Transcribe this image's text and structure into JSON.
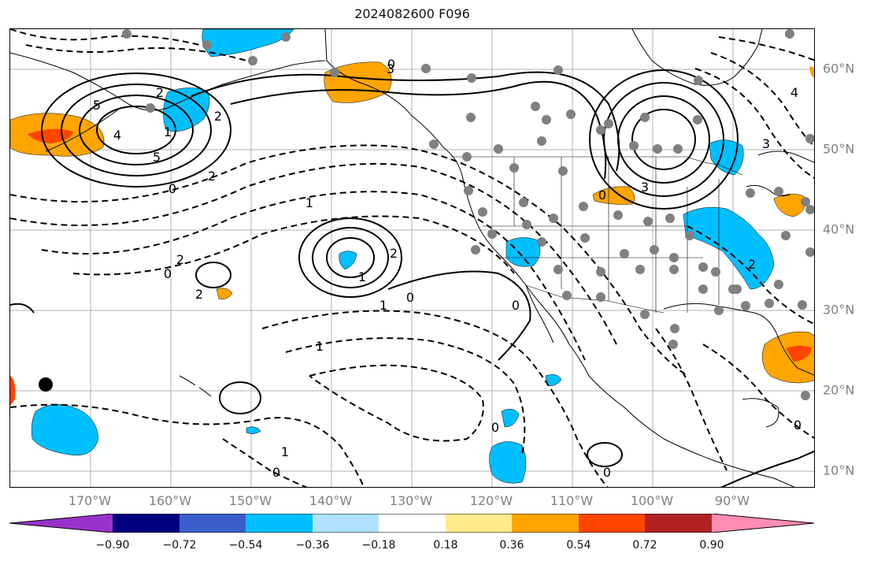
{
  "title": "2024082600 F096",
  "colors": {
    "land_outline": "#000000",
    "grid": "#b0b0b0",
    "contour": "#000000",
    "station_marker": "#808080"
  },
  "longitude_labels": [
    "170°W",
    "160°W",
    "150°W",
    "140°W",
    "130°W",
    "120°W",
    "110°W",
    "100°W",
    "90°W"
  ],
  "latitude_labels": [
    "60°N",
    "50°N",
    "40°N",
    "30°N",
    "20°N",
    "10°N"
  ],
  "contour_labels": [
    "0",
    "2",
    "5",
    "4",
    "5",
    "0",
    "2",
    "1",
    "2",
    "0",
    "2",
    "2",
    "1",
    "1",
    "0",
    "0",
    "1",
    "0",
    "1",
    "0",
    "0",
    "3",
    "2",
    "0",
    "3",
    "0",
    "3",
    "4",
    "2",
    "0",
    "2",
    "1",
    "0",
    "1"
  ],
  "colorbar": {
    "ticks": [
      "−0.90",
      "−0.72",
      "−0.54",
      "−0.36",
      "−0.18",
      "0.18",
      "0.36",
      "0.54",
      "0.72",
      "0.90"
    ],
    "colors": [
      "#9932cc",
      "#000080",
      "#3a5fcd",
      "#00bfff",
      "#b0e2ff",
      "#ffffff",
      "#ffeb8a",
      "#ffa500",
      "#ff4500",
      "#b22222",
      "#ff8cb4"
    ],
    "extend": "both"
  }
}
